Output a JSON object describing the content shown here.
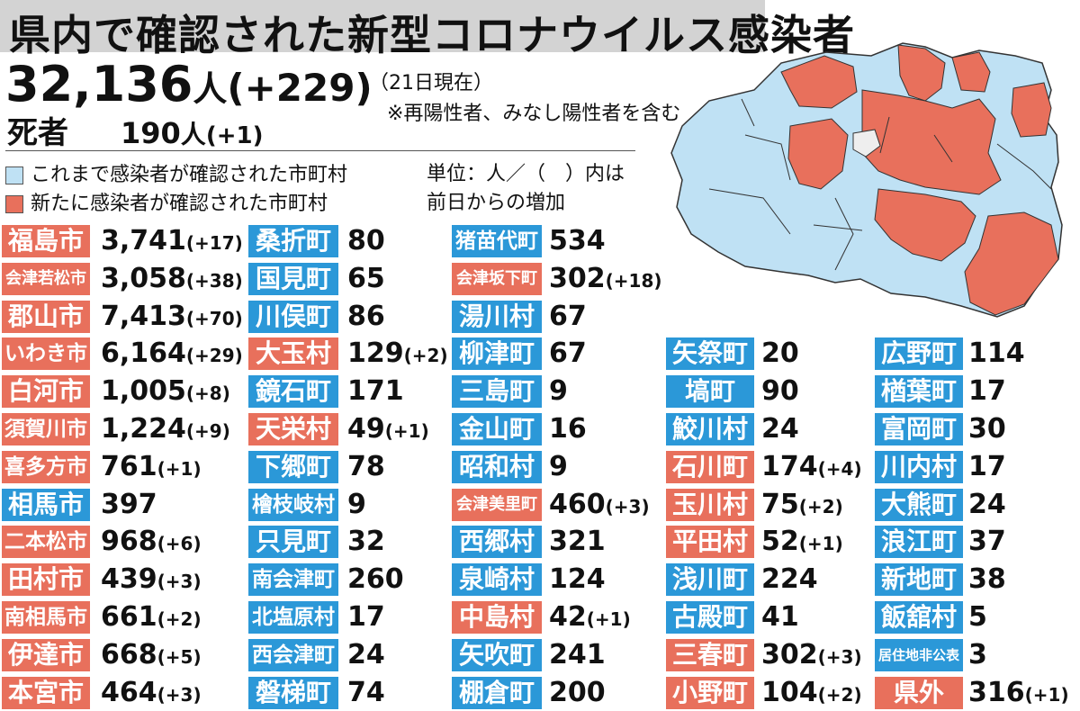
{
  "header": {
    "title": "県内で確認された新型コロナウイルス感染者",
    "total": "32,136",
    "total_unit": "人",
    "total_delta": "(+229)",
    "date": "（21日現在）",
    "note": "※再陽性者、みなし陽性者を含む",
    "deaths_label": "死者",
    "deaths_value": "190",
    "deaths_unit": "人",
    "deaths_delta": "(+1)"
  },
  "legend": {
    "confirmed_label": "これまで感染者が確認された市町村",
    "new_label": "新たに感染者が確認された市町村",
    "unit_note": "単位：人／（　）内は\n前日からの増加",
    "colors": {
      "confirmed": "#bfe1f4",
      "new": "#e8705c",
      "none": "#eeeeee"
    }
  },
  "municipalities": [
    {
      "name": "福島市",
      "count": "3,741",
      "delta": "(+17)",
      "status": "new"
    },
    {
      "name": "会津若松市",
      "count": "3,058",
      "delta": "(+38)",
      "status": "new"
    },
    {
      "name": "郡山市",
      "count": "7,413",
      "delta": "(+70)",
      "status": "new"
    },
    {
      "name": "いわき市",
      "count": "6,164",
      "delta": "(+29)",
      "status": "new"
    },
    {
      "name": "白河市",
      "count": "1,005",
      "delta": "(+8)",
      "status": "new"
    },
    {
      "name": "須賀川市",
      "count": "1,224",
      "delta": "(+9)",
      "status": "new"
    },
    {
      "name": "喜多方市",
      "count": "761",
      "delta": "(+1)",
      "status": "new"
    },
    {
      "name": "相馬市",
      "count": "397",
      "delta": "",
      "status": "confirmed"
    },
    {
      "name": "二本松市",
      "count": "968",
      "delta": "(+6)",
      "status": "new"
    },
    {
      "name": "田村市",
      "count": "439",
      "delta": "(+3)",
      "status": "new"
    },
    {
      "name": "南相馬市",
      "count": "661",
      "delta": "(+2)",
      "status": "new"
    },
    {
      "name": "伊達市",
      "count": "668",
      "delta": "(+5)",
      "status": "new"
    },
    {
      "name": "本宮市",
      "count": "464",
      "delta": "(+3)",
      "status": "new"
    },
    {
      "name": "桑折町",
      "count": "80",
      "delta": "",
      "status": "confirmed"
    },
    {
      "name": "国見町",
      "count": "65",
      "delta": "",
      "status": "confirmed"
    },
    {
      "name": "川俣町",
      "count": "86",
      "delta": "",
      "status": "confirmed"
    },
    {
      "name": "大玉村",
      "count": "129",
      "delta": "(+2)",
      "status": "new"
    },
    {
      "name": "鏡石町",
      "count": "171",
      "delta": "",
      "status": "confirmed"
    },
    {
      "name": "天栄村",
      "count": "49",
      "delta": "(+1)",
      "status": "new"
    },
    {
      "name": "下郷町",
      "count": "78",
      "delta": "",
      "status": "confirmed"
    },
    {
      "name": "檜枝岐村",
      "count": "9",
      "delta": "",
      "status": "confirmed"
    },
    {
      "name": "只見町",
      "count": "32",
      "delta": "",
      "status": "confirmed"
    },
    {
      "name": "南会津町",
      "count": "260",
      "delta": "",
      "status": "confirmed"
    },
    {
      "name": "北塩原村",
      "count": "17",
      "delta": "",
      "status": "confirmed"
    },
    {
      "name": "西会津町",
      "count": "24",
      "delta": "",
      "status": "confirmed"
    },
    {
      "name": "磐梯町",
      "count": "74",
      "delta": "",
      "status": "confirmed"
    },
    {
      "name": "猪苗代町",
      "count": "534",
      "delta": "",
      "status": "confirmed"
    },
    {
      "name": "会津坂下町",
      "count": "302",
      "delta": "(+18)",
      "status": "new"
    },
    {
      "name": "湯川村",
      "count": "67",
      "delta": "",
      "status": "confirmed"
    },
    {
      "name": "柳津町",
      "count": "67",
      "delta": "",
      "status": "confirmed"
    },
    {
      "name": "三島町",
      "count": "9",
      "delta": "",
      "status": "confirmed"
    },
    {
      "name": "金山町",
      "count": "16",
      "delta": "",
      "status": "confirmed"
    },
    {
      "name": "昭和村",
      "count": "9",
      "delta": "",
      "status": "confirmed"
    },
    {
      "name": "会津美里町",
      "count": "460",
      "delta": "(+3)",
      "status": "new"
    },
    {
      "name": "西郷村",
      "count": "321",
      "delta": "",
      "status": "confirmed"
    },
    {
      "name": "泉崎村",
      "count": "124",
      "delta": "",
      "status": "confirmed"
    },
    {
      "name": "中島村",
      "count": "42",
      "delta": "(+1)",
      "status": "new"
    },
    {
      "name": "矢吹町",
      "count": "241",
      "delta": "",
      "status": "confirmed"
    },
    {
      "name": "棚倉町",
      "count": "200",
      "delta": "",
      "status": "confirmed"
    },
    {
      "name": "矢祭町",
      "count": "20",
      "delta": "",
      "status": "confirmed"
    },
    {
      "name": "塙町",
      "count": "90",
      "delta": "",
      "status": "confirmed"
    },
    {
      "name": "鮫川村",
      "count": "24",
      "delta": "",
      "status": "confirmed"
    },
    {
      "name": "石川町",
      "count": "174",
      "delta": "(+4)",
      "status": "new"
    },
    {
      "name": "玉川村",
      "count": "75",
      "delta": "(+2)",
      "status": "new"
    },
    {
      "name": "平田村",
      "count": "52",
      "delta": "(+1)",
      "status": "new"
    },
    {
      "name": "浅川町",
      "count": "224",
      "delta": "",
      "status": "confirmed"
    },
    {
      "name": "古殿町",
      "count": "41",
      "delta": "",
      "status": "confirmed"
    },
    {
      "name": "三春町",
      "count": "302",
      "delta": "(+3)",
      "status": "new"
    },
    {
      "name": "小野町",
      "count": "104",
      "delta": "(+2)",
      "status": "new"
    },
    {
      "name": "広野町",
      "count": "114",
      "delta": "",
      "status": "confirmed"
    },
    {
      "name": "楢葉町",
      "count": "17",
      "delta": "",
      "status": "confirmed"
    },
    {
      "name": "富岡町",
      "count": "30",
      "delta": "",
      "status": "confirmed"
    },
    {
      "name": "川内村",
      "count": "17",
      "delta": "",
      "status": "confirmed"
    },
    {
      "name": "大熊町",
      "count": "24",
      "delta": "",
      "status": "confirmed"
    },
    {
      "name": "浪江町",
      "count": "37",
      "delta": "",
      "status": "confirmed"
    },
    {
      "name": "新地町",
      "count": "38",
      "delta": "",
      "status": "confirmed"
    },
    {
      "name": "飯舘村",
      "count": "5",
      "delta": "",
      "status": "confirmed"
    },
    {
      "name": "居住地非公表",
      "count": "3",
      "delta": "",
      "status": "confirmed"
    },
    {
      "name": "県外",
      "count": "316",
      "delta": "(+1)",
      "status": "new"
    }
  ]
}
